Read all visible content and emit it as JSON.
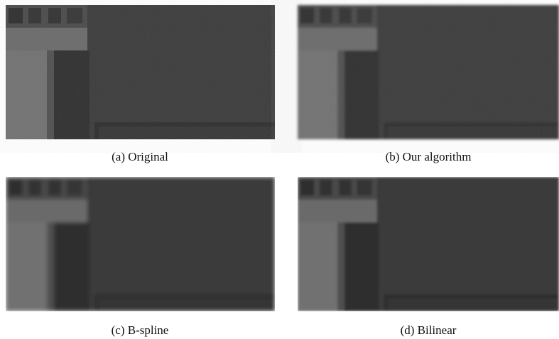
{
  "panels": [
    {
      "caption": "(a) Original"
    },
    {
      "caption": "(b) Our algorithm"
    },
    {
      "caption": "(c) B-spline"
    },
    {
      "caption": "(d) Bilinear"
    }
  ]
}
